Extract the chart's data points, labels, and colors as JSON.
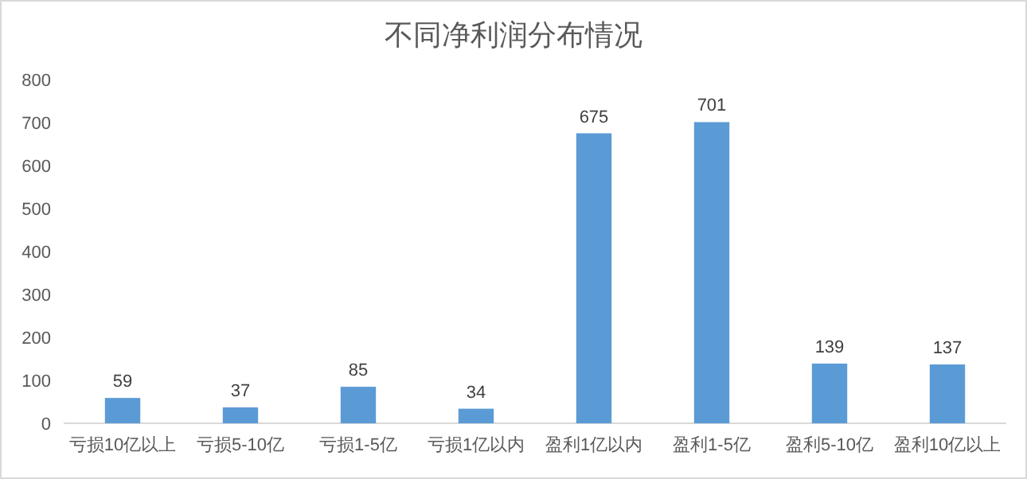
{
  "chart_data": {
    "type": "bar",
    "title": "不同净利润分布情况",
    "categories": [
      "亏损10亿以上",
      "亏损5-10亿",
      "亏损1-5亿",
      "亏损1亿以内",
      "盈利1亿以内",
      "盈利1-5亿",
      "盈利5-10亿",
      "盈利10亿以上"
    ],
    "values": [
      59,
      37,
      85,
      34,
      675,
      701,
      139,
      137
    ],
    "color": "#5b9bd5",
    "ylim": [
      0,
      800
    ],
    "yticks": [
      0,
      100,
      200,
      300,
      400,
      500,
      600,
      700,
      800
    ],
    "data_labels": true,
    "grid": false
  }
}
